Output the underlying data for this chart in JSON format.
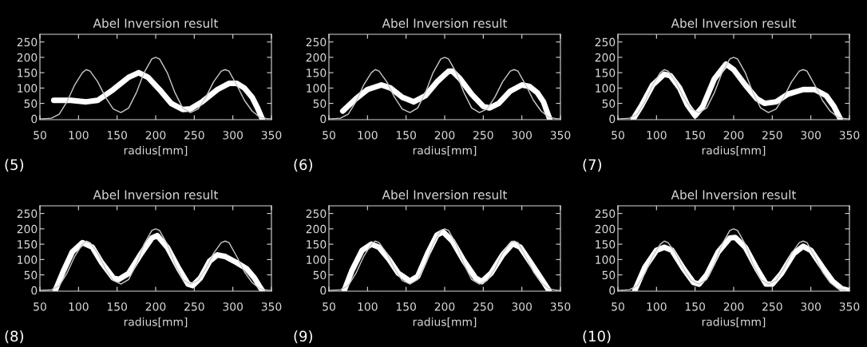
{
  "chart_data": [
    {
      "type": "line",
      "title": "Abel Inversion result",
      "xlabel": "radius[mm]",
      "xlim": [
        50,
        350
      ],
      "ylim": [
        -3,
        275
      ],
      "xticks": [
        50,
        100,
        150,
        200,
        250,
        300,
        350
      ],
      "yticks": [
        0,
        50,
        100,
        150,
        200,
        250
      ],
      "grid": false,
      "legend": false,
      "annotations": [
        "(5)"
      ],
      "series": [
        {
          "color": "#c8c8c8",
          "x": [
            55,
            65,
            75,
            85,
            95,
            105,
            110,
            115,
            125,
            135,
            145,
            155,
            165,
            175,
            185,
            195,
            200,
            205,
            215,
            225,
            235,
            245,
            255,
            265,
            275,
            285,
            290,
            295,
            305,
            315,
            325,
            335,
            345
          ],
          "values": [
            0,
            2,
            15,
            55,
            110,
            150,
            160,
            155,
            120,
            70,
            32,
            20,
            35,
            85,
            150,
            195,
            200,
            195,
            150,
            85,
            35,
            20,
            32,
            70,
            120,
            155,
            160,
            155,
            110,
            60,
            25,
            5,
            0
          ]
        },
        {
          "color": "#ffffff",
          "x": [
            68,
            90,
            110,
            125,
            145,
            165,
            178,
            190,
            205,
            220,
            235,
            245,
            260,
            280,
            295,
            305,
            315,
            325,
            332,
            338
          ],
          "values": [
            60,
            60,
            55,
            60,
            95,
            135,
            150,
            135,
            95,
            50,
            30,
            32,
            55,
            95,
            115,
            115,
            100,
            70,
            35,
            0
          ]
        }
      ]
    },
    {
      "type": "line",
      "title": "Abel Inversion result",
      "xlabel": "radius[mm]",
      "xlim": [
        50,
        350
      ],
      "ylim": [
        -3,
        275
      ],
      "xticks": [
        50,
        100,
        150,
        200,
        250,
        300,
        350
      ],
      "yticks": [
        0,
        50,
        100,
        150,
        200,
        250
      ],
      "grid": false,
      "legend": false,
      "annotations": [
        "(6)"
      ],
      "series": [
        {
          "color": "#c8c8c8",
          "x": [
            55,
            65,
            75,
            85,
            95,
            105,
            110,
            115,
            125,
            135,
            145,
            155,
            165,
            175,
            185,
            195,
            200,
            205,
            215,
            225,
            235,
            245,
            255,
            265,
            275,
            285,
            290,
            295,
            305,
            315,
            325,
            335,
            345
          ],
          "values": [
            0,
            2,
            15,
            55,
            110,
            150,
            160,
            155,
            120,
            70,
            32,
            20,
            35,
            85,
            150,
            195,
            200,
            195,
            150,
            85,
            35,
            20,
            32,
            70,
            120,
            155,
            160,
            155,
            110,
            60,
            25,
            5,
            0
          ]
        },
        {
          "color": "#ffffff",
          "x": [
            68,
            85,
            100,
            118,
            130,
            145,
            160,
            175,
            190,
            205,
            210,
            220,
            235,
            250,
            258,
            270,
            285,
            300,
            310,
            320,
            328,
            333,
            336
          ],
          "values": [
            25,
            65,
            95,
            110,
            100,
            70,
            55,
            75,
            120,
            155,
            155,
            130,
            80,
            40,
            35,
            50,
            90,
            110,
            105,
            85,
            55,
            20,
            0
          ]
        }
      ]
    },
    {
      "type": "line",
      "title": "Abel Inversion result",
      "xlabel": "radius[mm]",
      "xlim": [
        50,
        350
      ],
      "ylim": [
        -3,
        275
      ],
      "xticks": [
        50,
        100,
        150,
        200,
        250,
        300,
        350
      ],
      "yticks": [
        0,
        50,
        100,
        150,
        200,
        250
      ],
      "grid": false,
      "legend": false,
      "annotations": [
        "(7)"
      ],
      "series": [
        {
          "color": "#c8c8c8",
          "x": [
            55,
            65,
            75,
            85,
            95,
            105,
            110,
            115,
            125,
            135,
            145,
            155,
            165,
            175,
            185,
            195,
            200,
            205,
            215,
            225,
            235,
            245,
            255,
            265,
            275,
            285,
            290,
            295,
            305,
            315,
            325,
            335,
            345
          ],
          "values": [
            0,
            2,
            15,
            55,
            110,
            150,
            160,
            155,
            120,
            70,
            32,
            20,
            35,
            85,
            150,
            195,
            200,
            195,
            150,
            85,
            35,
            20,
            32,
            70,
            120,
            155,
            160,
            155,
            110,
            60,
            25,
            5,
            0
          ]
        },
        {
          "color": "#ffffff",
          "x": [
            70,
            80,
            95,
            110,
            118,
            130,
            140,
            150,
            160,
            175,
            190,
            200,
            215,
            230,
            240,
            255,
            270,
            290,
            305,
            320,
            330,
            338
          ],
          "values": [
            0,
            40,
            110,
            145,
            140,
            100,
            45,
            10,
            40,
            130,
            178,
            160,
            110,
            65,
            50,
            55,
            80,
            95,
            95,
            75,
            40,
            0
          ]
        }
      ]
    },
    {
      "type": "line",
      "title": "Abel Inversion result",
      "xlabel": "radius[mm]",
      "xlim": [
        50,
        350
      ],
      "ylim": [
        -3,
        275
      ],
      "xticks": [
        50,
        100,
        150,
        200,
        250,
        300,
        350
      ],
      "yticks": [
        0,
        50,
        100,
        150,
        200,
        250
      ],
      "grid": false,
      "legend": false,
      "annotations": [
        "(8)"
      ],
      "series": [
        {
          "color": "#c8c8c8",
          "x": [
            55,
            65,
            75,
            85,
            95,
            105,
            110,
            115,
            125,
            135,
            145,
            155,
            165,
            175,
            185,
            195,
            200,
            205,
            215,
            225,
            235,
            245,
            255,
            265,
            275,
            285,
            290,
            295,
            305,
            315,
            325,
            335,
            345
          ],
          "values": [
            0,
            2,
            15,
            55,
            110,
            150,
            160,
            155,
            120,
            70,
            32,
            20,
            35,
            85,
            150,
            195,
            200,
            195,
            150,
            85,
            35,
            20,
            32,
            70,
            120,
            155,
            160,
            155,
            110,
            60,
            25,
            5,
            0
          ]
        },
        {
          "color": "#ffffff",
          "x": [
            70,
            80,
            92,
            105,
            118,
            130,
            145,
            152,
            165,
            180,
            195,
            202,
            215,
            230,
            242,
            248,
            258,
            270,
            280,
            290,
            305,
            318,
            328,
            334,
            338
          ],
          "values": [
            0,
            60,
            125,
            155,
            140,
            90,
            40,
            35,
            55,
            115,
            170,
            178,
            140,
            70,
            20,
            15,
            40,
            95,
            115,
            110,
            90,
            70,
            40,
            15,
            0
          ]
        }
      ]
    },
    {
      "type": "line",
      "title": "Abel Inversion result",
      "xlabel": "radius[mm]",
      "xlim": [
        50,
        350
      ],
      "ylim": [
        -3,
        275
      ],
      "xticks": [
        50,
        100,
        150,
        200,
        250,
        300,
        350
      ],
      "yticks": [
        0,
        50,
        100,
        150,
        200,
        250
      ],
      "grid": false,
      "legend": false,
      "annotations": [
        "(9)"
      ],
      "series": [
        {
          "color": "#c8c8c8",
          "x": [
            55,
            65,
            75,
            85,
            95,
            105,
            110,
            115,
            125,
            135,
            145,
            155,
            165,
            175,
            185,
            195,
            200,
            205,
            215,
            225,
            235,
            245,
            255,
            265,
            275,
            285,
            290,
            295,
            305,
            315,
            325,
            335,
            345
          ],
          "values": [
            0,
            2,
            15,
            55,
            110,
            150,
            160,
            155,
            120,
            70,
            32,
            20,
            35,
            85,
            150,
            195,
            200,
            195,
            150,
            85,
            35,
            20,
            32,
            70,
            120,
            155,
            160,
            155,
            110,
            60,
            25,
            5,
            0
          ]
        },
        {
          "color": "#ffffff",
          "x": [
            70,
            80,
            93,
            105,
            115,
            128,
            140,
            155,
            165,
            178,
            190,
            198,
            210,
            225,
            240,
            248,
            260,
            275,
            288,
            298,
            310,
            322,
            335
          ],
          "values": [
            0,
            65,
            130,
            150,
            140,
            100,
            55,
            30,
            45,
            120,
            180,
            190,
            160,
            95,
            40,
            28,
            55,
            115,
            152,
            140,
            95,
            50,
            0
          ]
        }
      ]
    },
    {
      "type": "line",
      "title": "Abel Inversion result",
      "xlabel": "radius[mm]",
      "xlim": [
        50,
        350
      ],
      "ylim": [
        -3,
        275
      ],
      "xticks": [
        50,
        100,
        150,
        200,
        250,
        300,
        350
      ],
      "yticks": [
        0,
        50,
        100,
        150,
        200,
        250
      ],
      "grid": false,
      "legend": false,
      "annotations": [
        "(10)"
      ],
      "series": [
        {
          "color": "#c8c8c8",
          "x": [
            55,
            65,
            75,
            85,
            95,
            105,
            110,
            115,
            125,
            135,
            145,
            155,
            165,
            175,
            185,
            195,
            200,
            205,
            215,
            225,
            235,
            245,
            255,
            265,
            275,
            285,
            290,
            295,
            305,
            315,
            325,
            335,
            345
          ],
          "values": [
            0,
            2,
            15,
            55,
            110,
            150,
            160,
            155,
            120,
            70,
            32,
            20,
            35,
            85,
            150,
            195,
            200,
            195,
            150,
            85,
            35,
            20,
            32,
            70,
            120,
            155,
            160,
            155,
            110,
            60,
            25,
            5,
            0
          ]
        },
        {
          "color": "#ffffff",
          "x": [
            72,
            85,
            100,
            110,
            120,
            135,
            148,
            155,
            165,
            180,
            195,
            202,
            215,
            230,
            242,
            250,
            262,
            278,
            290,
            300,
            315,
            328,
            340,
            348
          ],
          "values": [
            0,
            75,
            130,
            140,
            130,
            70,
            25,
            20,
            50,
            125,
            170,
            172,
            140,
            70,
            20,
            20,
            55,
            120,
            143,
            130,
            75,
            30,
            5,
            0
          ]
        }
      ]
    }
  ]
}
